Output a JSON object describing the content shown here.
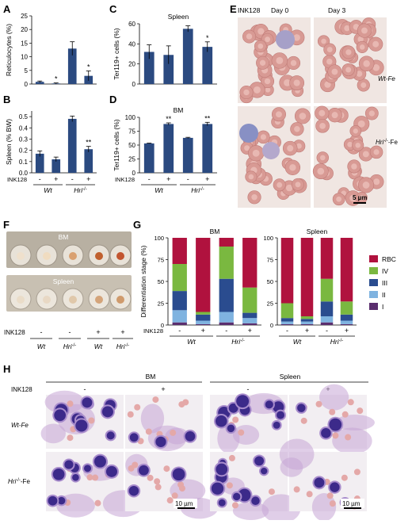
{
  "panels": {
    "A": {
      "letter": "A",
      "ylabel": "Reticulocytes (%)",
      "ticks": [
        "0",
        "5",
        "10",
        "15",
        "20",
        "25"
      ],
      "ymax": 25,
      "values": [
        0.8,
        0.2,
        13,
        3
      ],
      "errors": [
        0.3,
        0.2,
        2.5,
        1.8
      ],
      "stars": [
        "",
        "*",
        "",
        "*"
      ]
    },
    "B": {
      "letter": "B",
      "ylabel": "Spleen (% BW)",
      "ticks": [
        "0.0",
        "0.1",
        "0.2",
        "0.3",
        "0.4",
        "0.5"
      ],
      "ymax": 0.55,
      "values": [
        0.17,
        0.12,
        0.48,
        0.21
      ],
      "errors": [
        0.025,
        0.02,
        0.025,
        0.025
      ],
      "stars": [
        "",
        "",
        "",
        "**"
      ],
      "groups": [
        "Wt",
        "Hri"
      ],
      "groupSup": "-/-"
    },
    "C": {
      "letter": "C",
      "title": "Spleen",
      "ylabel": "Ter119+ cells (%)",
      "ticks": [
        "0",
        "20",
        "40",
        "60"
      ],
      "ymax": 60,
      "values": [
        32,
        29,
        55,
        37
      ],
      "errors": [
        7,
        9,
        3,
        5
      ],
      "stars": [
        "",
        "",
        "",
        "*"
      ]
    },
    "D": {
      "letter": "D",
      "title": "BM",
      "ylabel": "Ter119+ cells (%)",
      "ticks": [
        "0",
        "25",
        "50",
        "75",
        "100"
      ],
      "ymax": 100,
      "values": [
        53,
        88,
        63,
        88
      ],
      "errors": [
        0.5,
        2,
        1,
        3
      ],
      "stars": [
        "",
        "**",
        "",
        "**"
      ],
      "groups": [
        "Wt",
        "Hri"
      ],
      "groupSup": "-/-"
    },
    "E": {
      "letter": "E",
      "inhibitor": "INK128",
      "day0": "Day 0",
      "day3": "Day 3",
      "row1": "Wt-Fe",
      "row2": "Hri",
      "row2sup": "-/-",
      "row2suffix": "-Fe",
      "scale": "5 µm"
    },
    "F": {
      "letter": "F",
      "bm": "BM",
      "spleen": "Spleen",
      "inhibitor": "INK128",
      "signs": [
        "-",
        "-",
        "+",
        "+"
      ],
      "groups": [
        "Wt",
        "Hri",
        "Wt",
        "Hri"
      ],
      "groupSup": "-/-"
    },
    "G": {
      "letter": "G",
      "ylabel": "Differentiation stage (%)",
      "ticks": [
        "0",
        "25",
        "50",
        "75",
        "100"
      ],
      "titles": [
        "BM",
        "Spleen"
      ],
      "legend": [
        "RBC",
        "IV",
        "III",
        "II",
        "I"
      ],
      "colors": {
        "RBC": "#b0123e",
        "IV": "#7ab840",
        "III": "#2a4c8f",
        "II": "#7fb3e0",
        "I": "#5a2e6e"
      },
      "groups": [
        "Wt",
        "Hri"
      ],
      "groupSup": "-/-"
    },
    "H": {
      "letter": "H",
      "bm": "BM",
      "spleen": "Spleen",
      "inhibitor": "INK128",
      "minus": "-",
      "plus": "+",
      "row1": "Wt-Fe",
      "row2": "Hri",
      "row2sup": "-/-",
      "row2suffix": "-Fe",
      "scale": "10 µm"
    }
  },
  "signs": [
    "-",
    "+",
    "-",
    "+"
  ],
  "inhibitor": "INK128",
  "barColor": "#2b4a80",
  "chart_data": [
    {
      "type": "bar",
      "panel": "A",
      "categories": [
        "Wt -",
        "Wt +",
        "Hri-/- -",
        "Hri-/- +"
      ],
      "values": [
        0.8,
        0.2,
        13,
        3
      ],
      "ylabel": "Reticulocytes (%)",
      "ylim": [
        0,
        25
      ]
    },
    {
      "type": "bar",
      "panel": "B",
      "categories": [
        "Wt -",
        "Wt +",
        "Hri-/- -",
        "Hri-/- +"
      ],
      "values": [
        0.17,
        0.12,
        0.48,
        0.21
      ],
      "ylabel": "Spleen (% BW)",
      "ylim": [
        0,
        0.5
      ]
    },
    {
      "type": "bar",
      "panel": "C",
      "title": "Spleen",
      "categories": [
        "Wt -",
        "Wt +",
        "Hri-/- -",
        "Hri-/- +"
      ],
      "values": [
        32,
        29,
        55,
        37
      ],
      "ylabel": "Ter119+ cells (%)",
      "ylim": [
        0,
        60
      ]
    },
    {
      "type": "bar",
      "panel": "D",
      "title": "BM",
      "categories": [
        "Wt -",
        "Wt +",
        "Hri-/- -",
        "Hri-/- +"
      ],
      "values": [
        53,
        88,
        63,
        88
      ],
      "ylabel": "Ter119+ cells (%)",
      "ylim": [
        0,
        100
      ]
    },
    {
      "type": "bar",
      "panel": "G",
      "title": "BM",
      "stacked": true,
      "categories": [
        "Wt -",
        "Wt +",
        "Hri-/- -",
        "Hri-/- +"
      ],
      "series": [
        {
          "name": "I",
          "values": [
            3,
            1,
            3,
            2
          ]
        },
        {
          "name": "II",
          "values": [
            14,
            4,
            12,
            6
          ]
        },
        {
          "name": "III",
          "values": [
            22,
            7,
            38,
            6
          ]
        },
        {
          "name": "IV",
          "values": [
            31,
            3,
            37,
            29
          ]
        },
        {
          "name": "RBC",
          "values": [
            30,
            85,
            10,
            57
          ]
        }
      ],
      "ylabel": "Differentiation stage (%)",
      "ylim": [
        0,
        100
      ]
    },
    {
      "type": "bar",
      "panel": "G",
      "title": "Spleen",
      "stacked": true,
      "categories": [
        "Wt -",
        "Wt +",
        "Hri-/- -",
        "Hri-/- +"
      ],
      "series": [
        {
          "name": "I",
          "values": [
            1,
            1,
            3,
            1
          ]
        },
        {
          "name": "II",
          "values": [
            3,
            3,
            7,
            4
          ]
        },
        {
          "name": "III",
          "values": [
            4,
            3,
            17,
            7
          ]
        },
        {
          "name": "IV",
          "values": [
            17,
            3,
            26,
            15
          ]
        },
        {
          "name": "RBC",
          "values": [
            75,
            90,
            47,
            73
          ]
        }
      ],
      "ylabel": "Differentiation stage (%)",
      "ylim": [
        0,
        100
      ]
    }
  ]
}
